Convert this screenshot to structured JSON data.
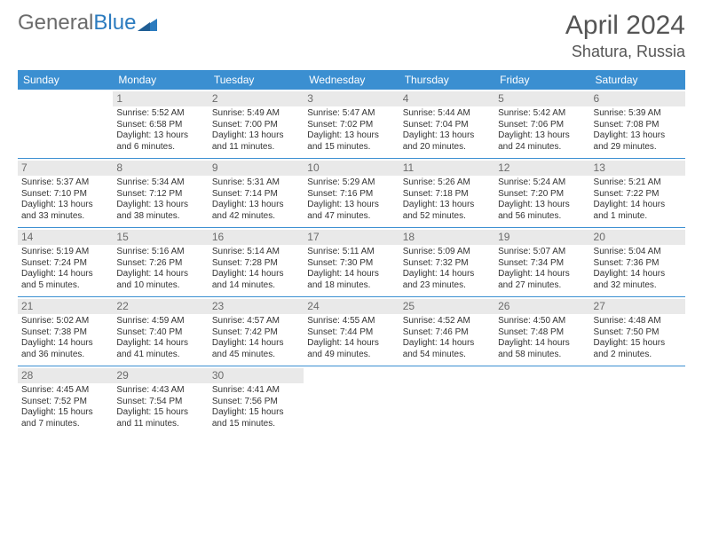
{
  "brand": {
    "part1": "General",
    "part2": "Blue"
  },
  "title": "April 2024",
  "location": "Shatura, Russia",
  "colors": {
    "header_bg": "#3b8fd1",
    "header_text": "#ffffff",
    "daynum_bg": "#e9e9e9",
    "daynum_text": "#6b6b6b",
    "rule": "#3b8fd1",
    "body_text": "#333333"
  },
  "weekdays": [
    "Sunday",
    "Monday",
    "Tuesday",
    "Wednesday",
    "Thursday",
    "Friday",
    "Saturday"
  ],
  "weeks": [
    [
      {
        "n": "",
        "sr": "",
        "ss": "",
        "d1": "",
        "d2": ""
      },
      {
        "n": "1",
        "sr": "Sunrise: 5:52 AM",
        "ss": "Sunset: 6:58 PM",
        "d1": "Daylight: 13 hours",
        "d2": "and 6 minutes."
      },
      {
        "n": "2",
        "sr": "Sunrise: 5:49 AM",
        "ss": "Sunset: 7:00 PM",
        "d1": "Daylight: 13 hours",
        "d2": "and 11 minutes."
      },
      {
        "n": "3",
        "sr": "Sunrise: 5:47 AM",
        "ss": "Sunset: 7:02 PM",
        "d1": "Daylight: 13 hours",
        "d2": "and 15 minutes."
      },
      {
        "n": "4",
        "sr": "Sunrise: 5:44 AM",
        "ss": "Sunset: 7:04 PM",
        "d1": "Daylight: 13 hours",
        "d2": "and 20 minutes."
      },
      {
        "n": "5",
        "sr": "Sunrise: 5:42 AM",
        "ss": "Sunset: 7:06 PM",
        "d1": "Daylight: 13 hours",
        "d2": "and 24 minutes."
      },
      {
        "n": "6",
        "sr": "Sunrise: 5:39 AM",
        "ss": "Sunset: 7:08 PM",
        "d1": "Daylight: 13 hours",
        "d2": "and 29 minutes."
      }
    ],
    [
      {
        "n": "7",
        "sr": "Sunrise: 5:37 AM",
        "ss": "Sunset: 7:10 PM",
        "d1": "Daylight: 13 hours",
        "d2": "and 33 minutes."
      },
      {
        "n": "8",
        "sr": "Sunrise: 5:34 AM",
        "ss": "Sunset: 7:12 PM",
        "d1": "Daylight: 13 hours",
        "d2": "and 38 minutes."
      },
      {
        "n": "9",
        "sr": "Sunrise: 5:31 AM",
        "ss": "Sunset: 7:14 PM",
        "d1": "Daylight: 13 hours",
        "d2": "and 42 minutes."
      },
      {
        "n": "10",
        "sr": "Sunrise: 5:29 AM",
        "ss": "Sunset: 7:16 PM",
        "d1": "Daylight: 13 hours",
        "d2": "and 47 minutes."
      },
      {
        "n": "11",
        "sr": "Sunrise: 5:26 AM",
        "ss": "Sunset: 7:18 PM",
        "d1": "Daylight: 13 hours",
        "d2": "and 52 minutes."
      },
      {
        "n": "12",
        "sr": "Sunrise: 5:24 AM",
        "ss": "Sunset: 7:20 PM",
        "d1": "Daylight: 13 hours",
        "d2": "and 56 minutes."
      },
      {
        "n": "13",
        "sr": "Sunrise: 5:21 AM",
        "ss": "Sunset: 7:22 PM",
        "d1": "Daylight: 14 hours",
        "d2": "and 1 minute."
      }
    ],
    [
      {
        "n": "14",
        "sr": "Sunrise: 5:19 AM",
        "ss": "Sunset: 7:24 PM",
        "d1": "Daylight: 14 hours",
        "d2": "and 5 minutes."
      },
      {
        "n": "15",
        "sr": "Sunrise: 5:16 AM",
        "ss": "Sunset: 7:26 PM",
        "d1": "Daylight: 14 hours",
        "d2": "and 10 minutes."
      },
      {
        "n": "16",
        "sr": "Sunrise: 5:14 AM",
        "ss": "Sunset: 7:28 PM",
        "d1": "Daylight: 14 hours",
        "d2": "and 14 minutes."
      },
      {
        "n": "17",
        "sr": "Sunrise: 5:11 AM",
        "ss": "Sunset: 7:30 PM",
        "d1": "Daylight: 14 hours",
        "d2": "and 18 minutes."
      },
      {
        "n": "18",
        "sr": "Sunrise: 5:09 AM",
        "ss": "Sunset: 7:32 PM",
        "d1": "Daylight: 14 hours",
        "d2": "and 23 minutes."
      },
      {
        "n": "19",
        "sr": "Sunrise: 5:07 AM",
        "ss": "Sunset: 7:34 PM",
        "d1": "Daylight: 14 hours",
        "d2": "and 27 minutes."
      },
      {
        "n": "20",
        "sr": "Sunrise: 5:04 AM",
        "ss": "Sunset: 7:36 PM",
        "d1": "Daylight: 14 hours",
        "d2": "and 32 minutes."
      }
    ],
    [
      {
        "n": "21",
        "sr": "Sunrise: 5:02 AM",
        "ss": "Sunset: 7:38 PM",
        "d1": "Daylight: 14 hours",
        "d2": "and 36 minutes."
      },
      {
        "n": "22",
        "sr": "Sunrise: 4:59 AM",
        "ss": "Sunset: 7:40 PM",
        "d1": "Daylight: 14 hours",
        "d2": "and 41 minutes."
      },
      {
        "n": "23",
        "sr": "Sunrise: 4:57 AM",
        "ss": "Sunset: 7:42 PM",
        "d1": "Daylight: 14 hours",
        "d2": "and 45 minutes."
      },
      {
        "n": "24",
        "sr": "Sunrise: 4:55 AM",
        "ss": "Sunset: 7:44 PM",
        "d1": "Daylight: 14 hours",
        "d2": "and 49 minutes."
      },
      {
        "n": "25",
        "sr": "Sunrise: 4:52 AM",
        "ss": "Sunset: 7:46 PM",
        "d1": "Daylight: 14 hours",
        "d2": "and 54 minutes."
      },
      {
        "n": "26",
        "sr": "Sunrise: 4:50 AM",
        "ss": "Sunset: 7:48 PM",
        "d1": "Daylight: 14 hours",
        "d2": "and 58 minutes."
      },
      {
        "n": "27",
        "sr": "Sunrise: 4:48 AM",
        "ss": "Sunset: 7:50 PM",
        "d1": "Daylight: 15 hours",
        "d2": "and 2 minutes."
      }
    ],
    [
      {
        "n": "28",
        "sr": "Sunrise: 4:45 AM",
        "ss": "Sunset: 7:52 PM",
        "d1": "Daylight: 15 hours",
        "d2": "and 7 minutes."
      },
      {
        "n": "29",
        "sr": "Sunrise: 4:43 AM",
        "ss": "Sunset: 7:54 PM",
        "d1": "Daylight: 15 hours",
        "d2": "and 11 minutes."
      },
      {
        "n": "30",
        "sr": "Sunrise: 4:41 AM",
        "ss": "Sunset: 7:56 PM",
        "d1": "Daylight: 15 hours",
        "d2": "and 15 minutes."
      },
      {
        "n": "",
        "sr": "",
        "ss": "",
        "d1": "",
        "d2": ""
      },
      {
        "n": "",
        "sr": "",
        "ss": "",
        "d1": "",
        "d2": ""
      },
      {
        "n": "",
        "sr": "",
        "ss": "",
        "d1": "",
        "d2": ""
      },
      {
        "n": "",
        "sr": "",
        "ss": "",
        "d1": "",
        "d2": ""
      }
    ]
  ]
}
